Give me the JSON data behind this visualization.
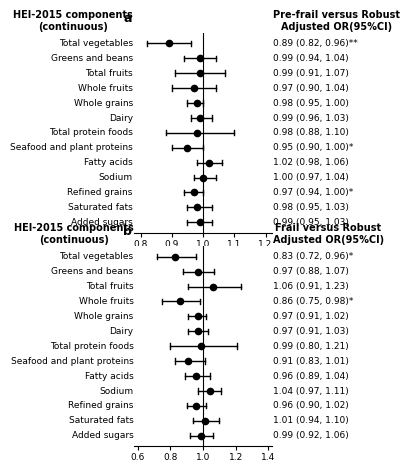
{
  "panel_a": {
    "title_left": "HEI-2015 components\n(continuous)",
    "title_right": "Pre-frail versus Robust\nAdjusted OR(95%CI)",
    "categories": [
      "Total vegetables",
      "Greens and beans",
      "Total fruits",
      "Whole fruits",
      "Whole grains",
      "Dairy",
      "Total protein foods",
      "Seafood and plant proteins",
      "Fatty acids",
      "Sodium",
      "Refined grains",
      "Saturated fats",
      "Added sugars"
    ],
    "or_values": [
      0.89,
      0.99,
      0.99,
      0.97,
      0.98,
      0.99,
      0.98,
      0.95,
      1.02,
      1.0,
      0.97,
      0.98,
      0.99
    ],
    "ci_low": [
      0.82,
      0.94,
      0.91,
      0.9,
      0.95,
      0.96,
      0.88,
      0.9,
      0.98,
      0.97,
      0.94,
      0.95,
      0.95
    ],
    "ci_high": [
      0.96,
      1.04,
      1.07,
      1.04,
      1.0,
      1.03,
      1.1,
      1.0,
      1.06,
      1.04,
      1.0,
      1.03,
      1.03
    ],
    "labels": [
      "0.89 (0.82, 0.96)**",
      "0.99 (0.94, 1.04)",
      "0.99 (0.91, 1.07)",
      "0.97 (0.90, 1.04)",
      "0.98 (0.95, 1.00)",
      "0.99 (0.96, 1.03)",
      "0.98 (0.88, 1.10)",
      "0.95 (0.90, 1.00)*",
      "1.02 (0.98, 1.06)",
      "1.00 (0.97, 1.04)",
      "0.97 (0.94, 1.00)*",
      "0.98 (0.95, 1.03)",
      "0.99 (0.95, 1.03)"
    ],
    "xlim": [
      0.78,
      1.22
    ],
    "xticks": [
      0.8,
      0.9,
      1.0,
      1.1,
      1.2
    ],
    "xticklabels": [
      "0.8",
      "0.9",
      "1.0",
      "1.1",
      "1.2"
    ],
    "vline": 1.0,
    "panel_label": "a"
  },
  "panel_b": {
    "title_left": "HEI-2015 components\n(continuous)",
    "title_right": "Frail versus Robust\nAdjusted OR(95%CI)",
    "categories": [
      "Total vegetables",
      "Greens and beans",
      "Total fruits",
      "Whole fruits",
      "Whole grains",
      "Dairy",
      "Total protein foods",
      "Seafood and plant proteins",
      "Fatty acids",
      "Sodium",
      "Refined grains",
      "Saturated fats",
      "Added sugars"
    ],
    "or_values": [
      0.83,
      0.97,
      1.06,
      0.86,
      0.97,
      0.97,
      0.99,
      0.91,
      0.96,
      1.04,
      0.96,
      1.01,
      0.99
    ],
    "ci_low": [
      0.72,
      0.88,
      0.91,
      0.75,
      0.91,
      0.91,
      0.8,
      0.83,
      0.89,
      0.97,
      0.9,
      0.94,
      0.92
    ],
    "ci_high": [
      0.96,
      1.07,
      1.23,
      0.98,
      1.02,
      1.03,
      1.21,
      1.01,
      1.04,
      1.11,
      1.02,
      1.1,
      1.06
    ],
    "labels": [
      "0.83 (0.72, 0.96)*",
      "0.97 (0.88, 1.07)",
      "1.06 (0.91, 1.23)",
      "0.86 (0.75, 0.98)*",
      "0.97 (0.91, 1.02)",
      "0.97 (0.91, 1.03)",
      "0.99 (0.80, 1.21)",
      "0.91 (0.83, 1.01)",
      "0.96 (0.89, 1.04)",
      "1.04 (0.97, 1.11)",
      "0.96 (0.90, 1.02)",
      "1.01 (0.94, 1.10)",
      "0.99 (0.92, 1.06)"
    ],
    "xlim": [
      0.58,
      1.42
    ],
    "xticks": [
      0.6,
      0.8,
      1.0,
      1.2,
      1.4
    ],
    "xticklabels": [
      "0.6",
      "0.8",
      "1.0",
      "1.2",
      "1.4"
    ],
    "vline": 1.0,
    "panel_label": "b"
  },
  "dot_color": "#000000",
  "dot_size": 4.5,
  "line_color": "#000000",
  "line_width": 1.0,
  "font_size": 6.5,
  "label_font_size": 6.5,
  "title_font_size": 7.0,
  "panel_label_fontsize": 9
}
